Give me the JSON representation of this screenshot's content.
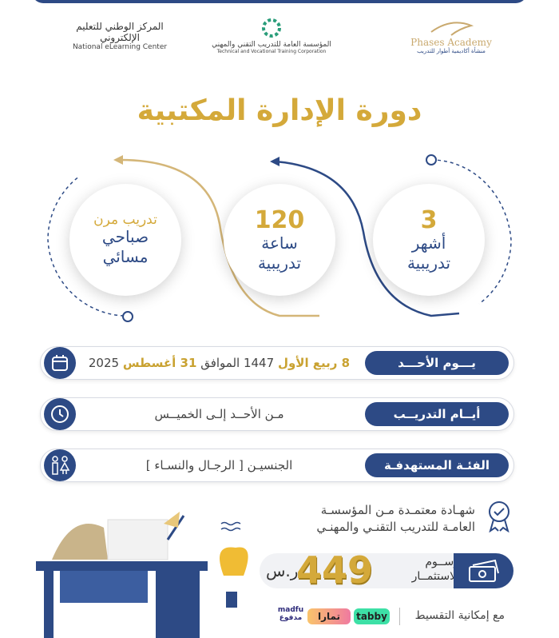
{
  "logos": [
    {
      "ar": "المركز الوطني للتعليم الإلكتروني",
      "en": "National eLearning Center"
    },
    {
      "ar": "المؤسسة العامة للتدريب التقني والمهني",
      "en": "Technical and Vocational Training Corporation"
    },
    {
      "ar": "Phases Academy",
      "en": "منشأة أكاديمية أطوار للتدريب"
    }
  ],
  "title": "دورة الإدارة المكتبية",
  "circles": [
    {
      "num": "3",
      "line1": "أشهر",
      "line2": "تدريبية"
    },
    {
      "num": "120",
      "line1": "ساعة",
      "line2": "تدريبية"
    },
    {
      "num": "تدريب مرن",
      "line1": "صباحي",
      "line2": "مسائي"
    }
  ],
  "rows": [
    {
      "label": "يـــوم الأحـــد",
      "parts": [
        "8 ربيع الأول",
        " 1447 الموافق ",
        "31 أغسطس",
        " 2025"
      ],
      "icon": "calendar-icon"
    },
    {
      "label": "أيــام التدريــب",
      "text": "مـن الأحــد إلـى الخميــس",
      "icon": "clock-icon"
    },
    {
      "label": "الفئـة المستهدفـة",
      "text": "الجنسيـن [ الرجـال والنسـاء ]",
      "icon": "men-women-icon"
    }
  ],
  "certificate": {
    "line1": "شهـادة معتمـدة مـن المؤسسـة",
    "line2": "العامـة للتدريب التقنـي والمهنـي"
  },
  "price": {
    "label1": "رســوم",
    "label2": "الاستثمــار",
    "value": "449",
    "currency": "ر.س"
  },
  "installment": {
    "label": "مع إمكانية التقسيط",
    "providers": [
      "tabby",
      "تمارا",
      "madfu مدفوع"
    ]
  },
  "colors": {
    "navy": "#2d4a85",
    "gold": "#d4a93a"
  }
}
